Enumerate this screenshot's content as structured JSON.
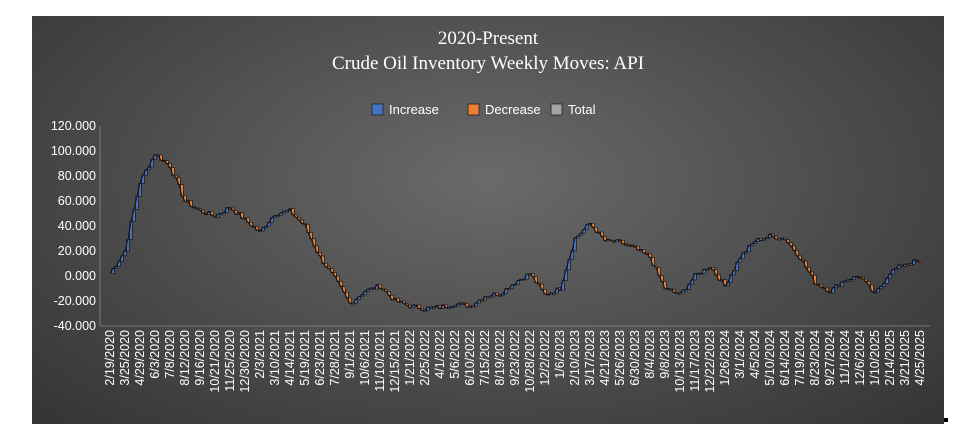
{
  "chart_data": {
    "type": "bar",
    "subtype": "waterfall",
    "title": "2020-Present",
    "subtitle": "Crude Oil Inventory Weekly Moves: API",
    "legend": {
      "placement": "top-center",
      "entries": [
        {
          "label": "Increase",
          "color": "#4472c4"
        },
        {
          "label": "Decrease",
          "color": "#ed7d31"
        },
        {
          "label": "Total",
          "color": "#a5a5a5"
        }
      ]
    },
    "grid": false,
    "ylim": [
      -40,
      120
    ],
    "yticks": [
      -40,
      -20,
      0,
      20,
      40,
      60,
      80,
      100,
      120
    ],
    "ytick_labels": [
      "-40.000",
      "-20.000",
      "0.000",
      "20.000",
      "40.000",
      "60.000",
      "80.000",
      "100.000",
      "120.000"
    ],
    "xtick_labels": [
      "2/19/2020",
      "3/25/2020",
      "4/29/2020",
      "6/3/2020",
      "7/8/2020",
      "8/12/2020",
      "9/16/2020",
      "10/21/2020",
      "11/25/2020",
      "12/30/2020",
      "2/3/2021",
      "3/10/2021",
      "4/14/2021",
      "5/19/2021",
      "6/23/2021",
      "7/28/2021",
      "9/1/2021",
      "10/6/2021",
      "11/10/2021",
      "12/15/2021",
      "1/21/2022",
      "2/25/2022",
      "4/1/2022",
      "5/6/2022",
      "6/10/2022",
      "7/15/2022",
      "8/19/2022",
      "9/23/2022",
      "10/28/2022",
      "12/2/2022",
      "1/6/2023",
      "2/10/2023",
      "3/17/2023",
      "4/21/2023",
      "5/26/2023",
      "6/30/2023",
      "8/4/2023",
      "9/8/2023",
      "10/13/2023",
      "11/17/2023",
      "12/22/2023",
      "1/26/2024",
      "3/1/2024",
      "4/5/2024",
      "5/10/2024",
      "6/14/2024",
      "7/19/2024",
      "8/23/2024",
      "9/27/2024",
      "11/1/2024",
      "12/6/2024",
      "1/10/2025",
      "2/14/2025",
      "3/21/2025",
      "4/25/2025"
    ],
    "series": [
      {
        "name": "Total",
        "x": [
          "2/19/2020",
          "3/25/2020",
          "4/29/2020",
          "6/3/2020",
          "7/8/2020",
          "8/12/2020",
          "9/16/2020",
          "10/21/2020",
          "11/25/2020",
          "12/30/2020",
          "2/3/2021",
          "3/10/2021",
          "4/14/2021",
          "5/19/2021",
          "6/23/2021",
          "7/28/2021",
          "9/1/2021",
          "10/6/2021",
          "11/10/2021",
          "12/15/2021",
          "1/21/2022",
          "2/25/2022",
          "4/1/2022",
          "5/6/2022",
          "6/10/2022",
          "7/15/2022",
          "8/19/2022",
          "9/23/2022",
          "10/28/2022",
          "12/2/2022",
          "1/6/2023",
          "2/10/2023",
          "3/17/2023",
          "4/21/2023",
          "5/26/2023",
          "6/30/2023",
          "8/4/2023",
          "9/8/2023",
          "10/13/2023",
          "11/17/2023",
          "12/22/2023",
          "1/26/2024",
          "3/1/2024",
          "4/5/2024",
          "5/10/2024",
          "6/14/2024",
          "7/19/2024",
          "8/23/2024",
          "9/27/2024",
          "11/1/2024",
          "12/6/2024",
          "1/10/2025",
          "2/14/2025",
          "3/21/2025",
          "4/25/2025"
        ],
        "values": [
          2,
          20,
          75,
          98,
          88,
          60,
          52,
          48,
          55,
          45,
          35,
          50,
          52,
          40,
          15,
          -2,
          -22,
          -12,
          -8,
          -20,
          -24,
          -26,
          -25,
          -22,
          -24,
          -16,
          -14,
          -5,
          2,
          -15,
          -10,
          30,
          42,
          28,
          27,
          22,
          15,
          -10,
          -15,
          0,
          8,
          -8,
          15,
          28,
          32,
          30,
          15,
          -5,
          -12,
          -3,
          0,
          -15,
          3,
          10,
          12
        ]
      }
    ],
    "increase_color": "#4472c4",
    "decrease_color": "#ed7d31",
    "total_color": "#a5a5a5"
  }
}
